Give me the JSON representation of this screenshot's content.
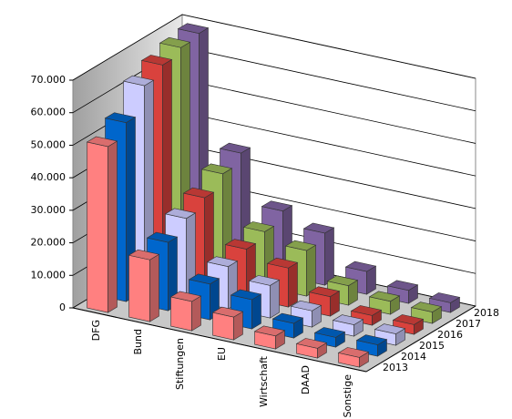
{
  "chart_data": {
    "type": "bar3d",
    "categories": [
      "DFG",
      "Bund",
      "Stiftungen",
      "EU",
      "Wirtschaft",
      "DAAD",
      "Sonstige"
    ],
    "series": [
      {
        "name": "2013",
        "color": "#ff8080",
        "values": [
          51000,
          19000,
          9000,
          7000,
          4000,
          3000,
          3000
        ]
      },
      {
        "name": "2014",
        "color": "#0066cc",
        "values": [
          55000,
          21000,
          11000,
          9000,
          4500,
          3000,
          3500
        ]
      },
      {
        "name": "2015",
        "color": "#ccccff",
        "values": [
          63000,
          25000,
          13000,
          10000,
          5000,
          3500,
          3500
        ]
      },
      {
        "name": "2016",
        "color": "#d9423d",
        "values": [
          66000,
          28000,
          15000,
          12000,
          6000,
          3000,
          3000
        ]
      },
      {
        "name": "2017",
        "color": "#9bbb59",
        "values": [
          68000,
          32000,
          17000,
          14000,
          6000,
          4000,
          3500
        ]
      },
      {
        "name": "2018",
        "color": "#8064a2",
        "values": [
          69000,
          35000,
          20000,
          16000,
          7000,
          4000,
          3000
        ]
      }
    ],
    "ylim": [
      0,
      70000
    ],
    "yticks": [
      0,
      {
        "value": 10000,
        "label": "10.000"
      },
      {
        "value": 20000,
        "label": "20.000"
      },
      {
        "value": 30000,
        "label": "30.000"
      },
      {
        "value": 40000,
        "label": "40.000"
      },
      {
        "value": 50000,
        "label": "50.000"
      },
      {
        "value": 60000,
        "label": "60.000"
      },
      {
        "value": 70000,
        "label": "70.000"
      }
    ],
    "grid": true
  }
}
